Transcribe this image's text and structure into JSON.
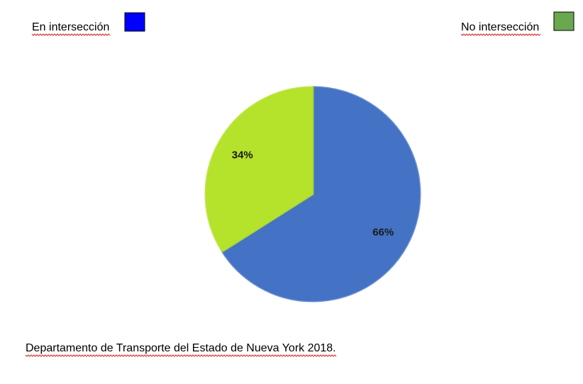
{
  "chart_data": {
    "type": "pie",
    "categories": [
      "En intersección",
      "No intersección"
    ],
    "values": [
      66,
      34
    ],
    "value_labels": [
      "66%",
      "34%"
    ],
    "colors": [
      "#4472c4",
      "#b5e22b"
    ],
    "legend_colors": [
      "#0000ff",
      "#6aa84f"
    ],
    "source": "Departamento de Transporte del Estado de Nueva York 2018."
  }
}
